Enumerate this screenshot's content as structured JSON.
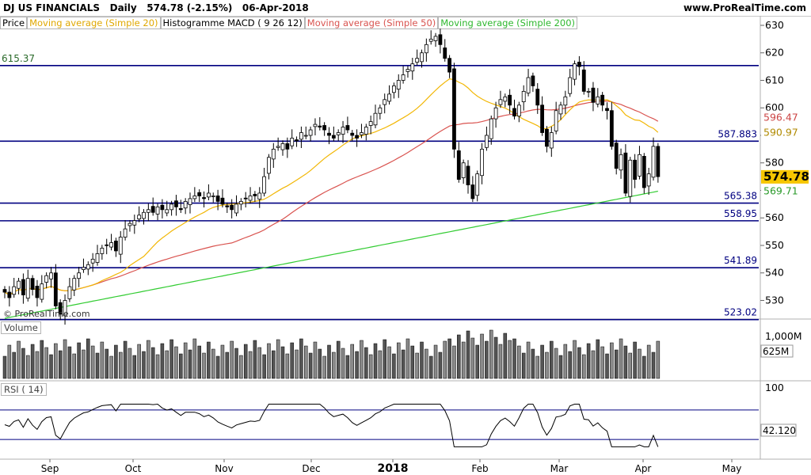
{
  "header": {
    "instrument": "DJ US FINANCIALS",
    "period": "Daily",
    "last_price": "574.78",
    "change": "(-2.15%)",
    "date": "06-Apr-2018",
    "site": "www.ProRealTime.com"
  },
  "legend": {
    "price": "Price",
    "ma20": "Moving average (Simple 20)",
    "macd": "Histogramme MACD ( 9 26 12)",
    "ma50": "Moving average (Simple 50)",
    "ma200": "Moving average (Simple 200)"
  },
  "watermark": "© ProRealTime.com",
  "panels": {
    "volume_label": "Volume",
    "rsi_label": "RSI ( 14)"
  },
  "colors": {
    "candle": "#000000",
    "ma20": "#f2b705",
    "ma50": "#d9534f",
    "ma200": "#33cc33",
    "hline": "#000080",
    "volume_bar": "#909090",
    "rsi_fill": "#c98a8a",
    "last_price_bg": "#f7c600"
  },
  "chart_data": [
    {
      "type": "candlestick",
      "title": "DJ US FINANCIALS Daily",
      "x_ticks": [
        "Sep",
        "Oct",
        "Nov",
        "Dec",
        "2018",
        "Feb",
        "Mar",
        "Apr",
        "May"
      ],
      "y_ticks": [
        530,
        540,
        550,
        560,
        570,
        580,
        590,
        600,
        610,
        620,
        630
      ],
      "ylim": [
        520,
        632
      ],
      "horizontal_levels": [
        {
          "value": 615.37,
          "label": "615.37",
          "label_side": "left"
        },
        {
          "value": 587.883,
          "label": "587.883",
          "label_side": "right"
        },
        {
          "value": 565.38,
          "label": "565.38",
          "label_side": "right"
        },
        {
          "value": 558.95,
          "label": "558.95",
          "label_side": "right"
        },
        {
          "value": 541.89,
          "label": "541.89",
          "label_side": "right"
        },
        {
          "value": 523.02,
          "label": "523.02",
          "label_side": "right"
        }
      ],
      "last_values": {
        "price": "574.78",
        "ma20": "590.97",
        "ma50": "596.47",
        "ma200": "569.71"
      },
      "closes": [
        533,
        531,
        535,
        537,
        532,
        538,
        534,
        531,
        536,
        539,
        540,
        528,
        525,
        530,
        535,
        538,
        540,
        542,
        543,
        545,
        547,
        549,
        550,
        551,
        548,
        553,
        556,
        558,
        559,
        561,
        562,
        563,
        562,
        564,
        563,
        563,
        565,
        564,
        563,
        566,
        567,
        568,
        568,
        567,
        569,
        568,
        566,
        565,
        564,
        563,
        565,
        566,
        567,
        568,
        568,
        569,
        575,
        582,
        585,
        586,
        587,
        585,
        589,
        588,
        591,
        590,
        592,
        594,
        593,
        592,
        590,
        589,
        591,
        593,
        592,
        590,
        589,
        591,
        593,
        595,
        598,
        600,
        603,
        605,
        608,
        610,
        612,
        614,
        616,
        618,
        620,
        623,
        625,
        626,
        623,
        618,
        613,
        585,
        574,
        580,
        572,
        567,
        576,
        585,
        590,
        596,
        600,
        603,
        604,
        601,
        597,
        601,
        606,
        611,
        608,
        601,
        591,
        586,
        591,
        599,
        601,
        604,
        611,
        616,
        615,
        606,
        606,
        602,
        604,
        601,
        599,
        586,
        578,
        583,
        569,
        581,
        574,
        583,
        571,
        576,
        586,
        575
      ],
      "series": [
        {
          "name": "Moving average (Simple 20)",
          "color": "#f2b705"
        },
        {
          "name": "Moving average (Simple 50)",
          "color": "#d9534f"
        },
        {
          "name": "Moving average (Simple 200)",
          "color": "#33cc33"
        }
      ]
    },
    {
      "type": "bar",
      "title": "Volume",
      "y_ticks": [
        "1,000M"
      ],
      "last_value": "625M"
    },
    {
      "type": "line",
      "title": "RSI ( 14)",
      "y_ticks": [
        100
      ],
      "last_value": "42.120",
      "levels": [
        70,
        30
      ]
    }
  ]
}
